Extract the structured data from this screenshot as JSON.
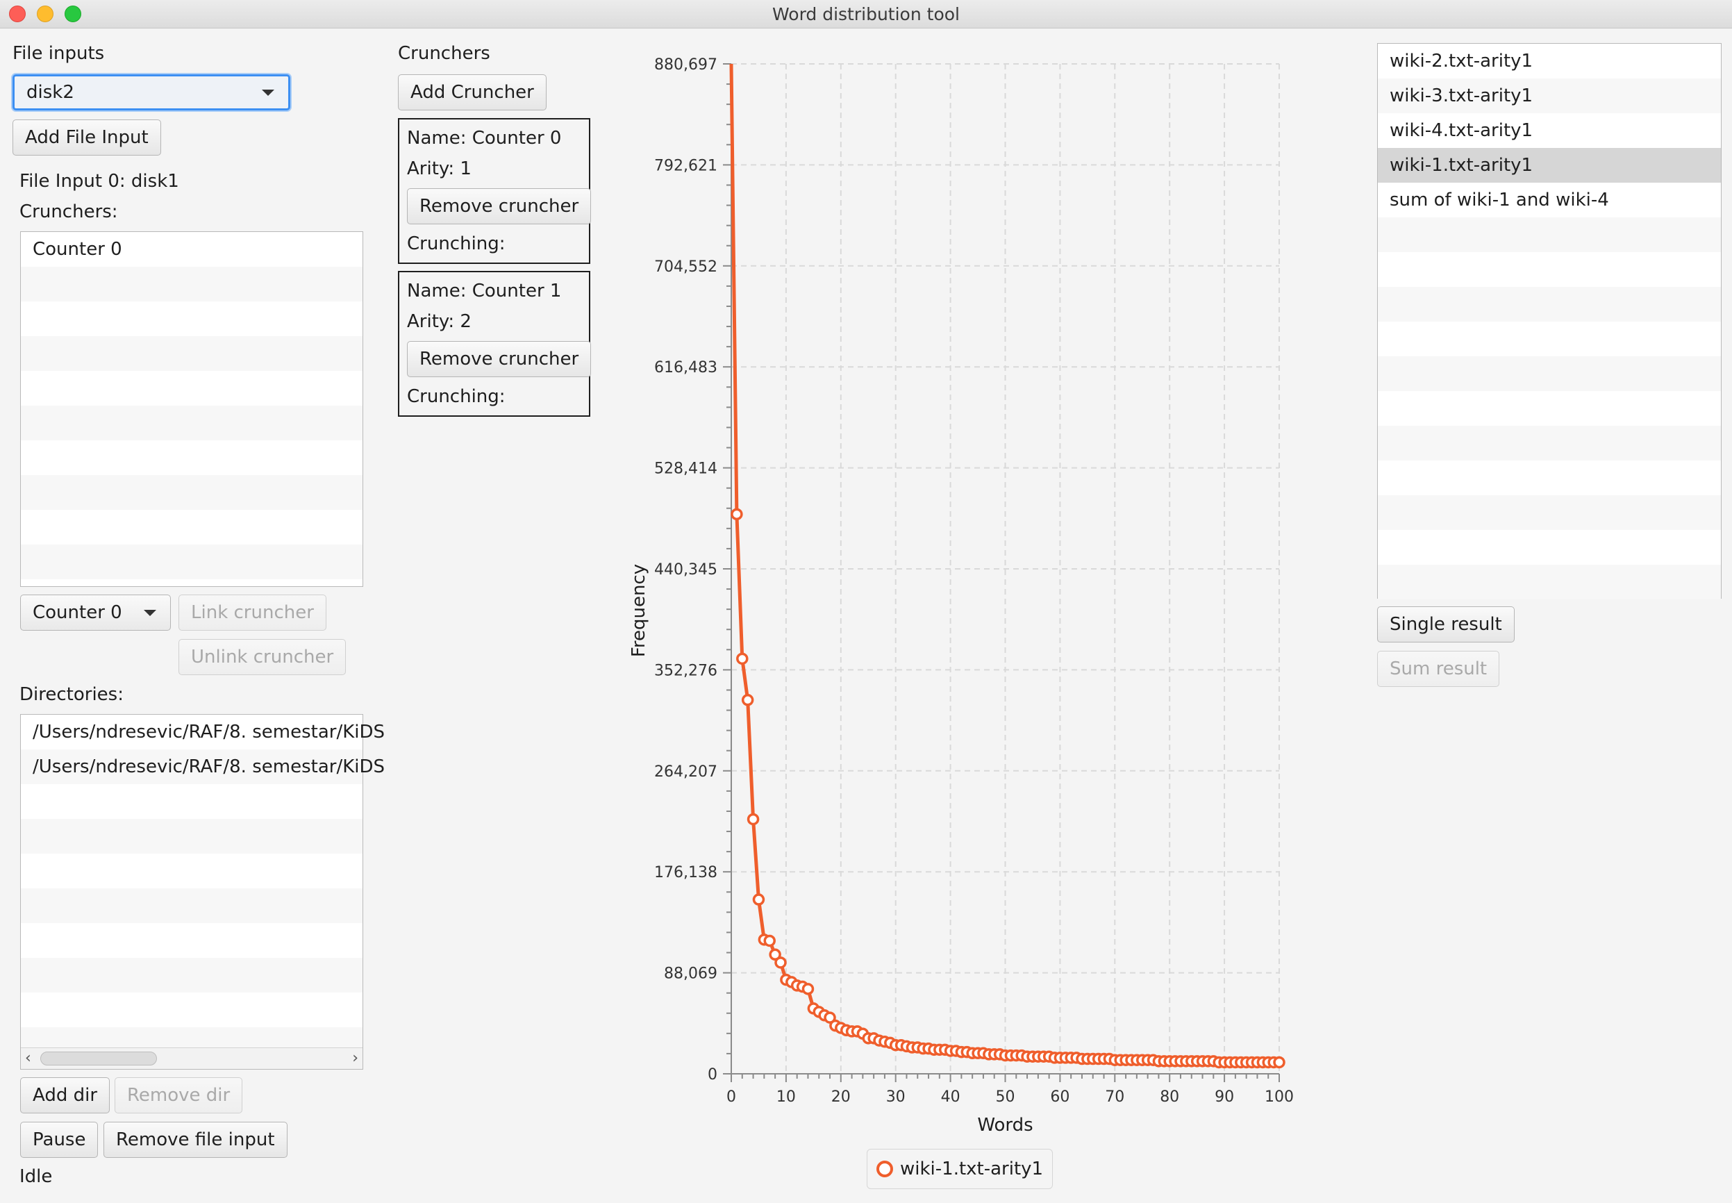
{
  "window": {
    "title": "Word distribution tool"
  },
  "file_inputs": {
    "label": "File inputs",
    "selected": "disk2",
    "add_button": "Add File Input",
    "input_title": "File Input 0: disk1",
    "crunchers_label": "Crunchers:",
    "crunchers": [
      "Counter 0"
    ],
    "cruncher_select": "Counter 0",
    "link_button": "Link cruncher",
    "unlink_button": "Unlink cruncher",
    "directories_label": "Directories:",
    "directories": [
      "/Users/ndresevic/RAF/8. semestar/KiDS",
      "/Users/ndresevic/RAF/8. semestar/KiDS"
    ],
    "add_dir_button": "Add dir",
    "remove_dir_button": "Remove dir",
    "pause_button": "Pause",
    "remove_input_button": "Remove file input",
    "status": "Idle"
  },
  "crunchers": {
    "label": "Crunchers",
    "add_button": "Add Cruncher",
    "items": [
      {
        "name": "Name: Counter 0",
        "arity": "Arity: 1",
        "remove": "Remove cruncher",
        "crunching": "Crunching:"
      },
      {
        "name": "Name: Counter 1",
        "arity": "Arity: 2",
        "remove": "Remove cruncher",
        "crunching": "Crunching:"
      }
    ]
  },
  "results": {
    "items": [
      "wiki-2.txt-arity1",
      "wiki-3.txt-arity1",
      "wiki-4.txt-arity1",
      "wiki-1.txt-arity1",
      "sum of wiki-1 and wiki-4"
    ],
    "selected": "wiki-1.txt-arity1",
    "single_button": "Single result",
    "sum_button": "Sum result"
  },
  "chart_data": {
    "type": "line",
    "xlabel": "Words",
    "ylabel": "Frequency",
    "xlim": [
      0,
      100
    ],
    "ylim": [
      0,
      880697
    ],
    "xticks": [
      0,
      10,
      20,
      30,
      40,
      50,
      60,
      70,
      80,
      90,
      100
    ],
    "yticks": [
      "0",
      "88,069",
      "176,138",
      "264,207",
      "352,276",
      "440,345",
      "528,414",
      "616,483",
      "704,552",
      "792,621",
      "880,697"
    ],
    "grid": true,
    "legend": "bottom-center",
    "color": "#ef5e2c",
    "series": [
      {
        "name": "wiki-1.txt-arity1",
        "x": [
          1,
          2,
          3,
          4,
          5,
          6,
          7,
          8,
          9,
          10,
          11,
          12,
          13,
          14,
          15,
          16,
          17,
          18,
          19,
          20,
          21,
          22,
          23,
          24,
          25,
          26,
          27,
          28,
          29,
          30,
          31,
          32,
          33,
          34,
          35,
          36,
          37,
          38,
          39,
          40,
          41,
          42,
          43,
          44,
          45,
          46,
          47,
          48,
          49,
          50,
          51,
          52,
          53,
          54,
          55,
          56,
          57,
          58,
          59,
          60,
          61,
          62,
          63,
          64,
          65,
          66,
          67,
          68,
          69,
          70,
          71,
          72,
          73,
          74,
          75,
          76,
          77,
          78,
          79,
          80,
          81,
          82,
          83,
          84,
          85,
          86,
          87,
          88,
          89,
          90,
          91,
          92,
          93,
          94,
          95,
          96,
          97,
          98,
          99,
          100
        ],
        "y": [
          488000,
          362000,
          326000,
          222000,
          152000,
          117000,
          116000,
          104000,
          97000,
          82000,
          80000,
          77000,
          76000,
          74000,
          57000,
          54000,
          51000,
          49000,
          42000,
          40000,
          38000,
          37000,
          37000,
          35000,
          31000,
          31000,
          29000,
          28000,
          27000,
          25000,
          25000,
          24000,
          23000,
          23000,
          22000,
          22000,
          21000,
          21000,
          21000,
          20000,
          20000,
          19000,
          19000,
          18000,
          18000,
          18000,
          17000,
          17000,
          17000,
          16000,
          16000,
          16000,
          16000,
          15000,
          15000,
          15000,
          15000,
          15000,
          14000,
          14000,
          14000,
          14000,
          14000,
          13000,
          13000,
          13000,
          13000,
          13000,
          13000,
          12000,
          12000,
          12000,
          12000,
          12000,
          12000,
          12000,
          12000,
          11000,
          11000,
          11000,
          11000,
          11000,
          11000,
          11000,
          11000,
          11000,
          11000,
          11000,
          10000,
          10000,
          10000,
          10000,
          10000,
          10000,
          10000,
          10000,
          10000,
          10000,
          10000,
          10000
        ]
      }
    ]
  }
}
